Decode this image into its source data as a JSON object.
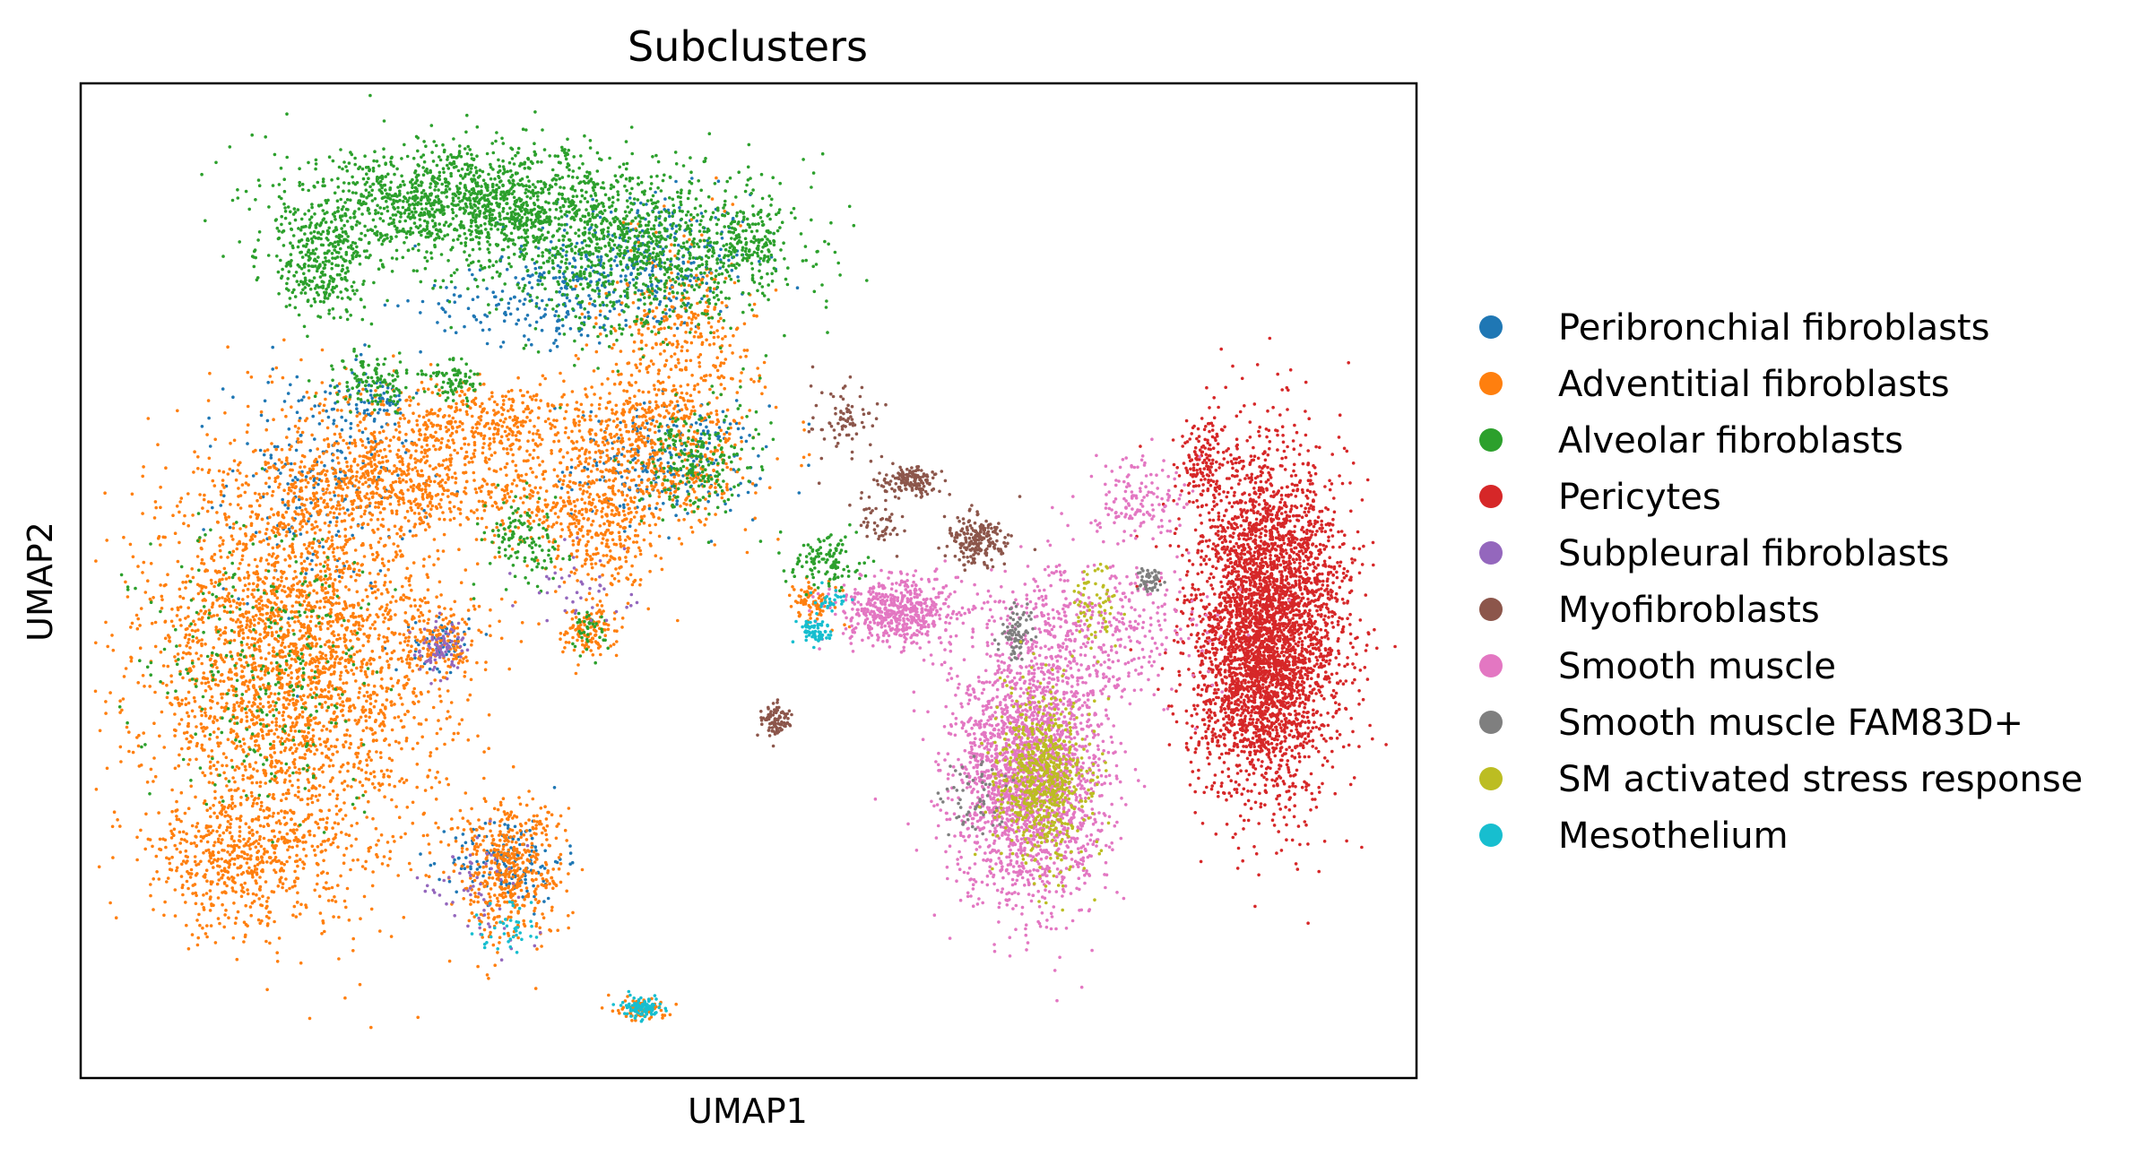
{
  "chart_data": {
    "type": "scatter",
    "title": "Subclusters",
    "xlabel": "UMAP1",
    "ylabel": "UMAP2",
    "xlim": [
      0,
      100
    ],
    "ylim": [
      0,
      100
    ],
    "grid": false,
    "ticks": false,
    "legend_position": "right",
    "series": [
      {
        "name": "Peribronchial fibroblasts",
        "color": "#1f77b4",
        "clusters": [
          [
            42,
            82,
            6,
            5,
            350
          ],
          [
            44,
            62,
            5,
            4,
            260
          ],
          [
            18,
            60,
            5,
            8,
            220
          ],
          [
            32,
            22,
            3,
            3,
            160
          ],
          [
            22,
            68,
            2,
            2,
            60
          ],
          [
            34,
            78,
            6,
            3,
            160
          ],
          [
            27,
            44,
            1.5,
            2,
            60
          ]
        ]
      },
      {
        "name": "Adventitial fibroblasts",
        "color": "#ff7f0e",
        "clusters": [
          [
            16,
            42,
            8,
            15,
            3000
          ],
          [
            23,
            60,
            6,
            4,
            600
          ],
          [
            30,
            66,
            7,
            3,
            450
          ],
          [
            32,
            21,
            3,
            5,
            500
          ],
          [
            43,
            63,
            5,
            6,
            600
          ],
          [
            39,
            54,
            3,
            4,
            250
          ],
          [
            38,
            45,
            1.5,
            2,
            120
          ],
          [
            27,
            44,
            2,
            2.5,
            130
          ],
          [
            42,
            7,
            1.3,
            1,
            70
          ],
          [
            45,
            75,
            4,
            7,
            350
          ],
          [
            55,
            48,
            1.5,
            1.5,
            80
          ],
          [
            35,
            58,
            5,
            3,
            200
          ],
          [
            12,
            22,
            5,
            5,
            500
          ]
        ]
      },
      {
        "name": "Alveolar fibroblasts",
        "color": "#2ca02c",
        "clusters": [
          [
            29,
            88,
            9,
            4,
            1400
          ],
          [
            42,
            83,
            8,
            6,
            1000
          ],
          [
            18,
            82,
            3,
            4,
            350
          ],
          [
            22,
            70,
            2,
            2,
            120
          ],
          [
            28,
            70,
            1.5,
            1.5,
            80
          ],
          [
            33,
            54,
            2,
            3,
            120
          ],
          [
            46,
            62,
            3,
            4,
            220
          ],
          [
            14,
            42,
            6,
            10,
            300
          ],
          [
            56,
            52,
            2,
            2,
            120
          ],
          [
            38,
            45,
            1,
            1.5,
            40
          ],
          [
            50,
            84,
            2,
            3,
            150
          ]
        ]
      },
      {
        "name": "Pericytes",
        "color": "#d62728",
        "clusters": [
          [
            89,
            46,
            4,
            12,
            3500
          ],
          [
            84,
            62,
            1.2,
            3,
            120
          ],
          [
            87,
            38,
            3,
            6,
            400
          ]
        ]
      },
      {
        "name": "Subpleural fibroblasts",
        "color": "#9467bd",
        "clusters": [
          [
            27,
            43,
            1.5,
            2,
            80
          ],
          [
            30,
            19,
            3,
            4,
            60
          ],
          [
            38,
            50,
            3,
            3,
            40
          ]
        ]
      },
      {
        "name": "Myofibroblasts",
        "color": "#8c564b",
        "clusters": [
          [
            62,
            60,
            1.5,
            1,
            150
          ],
          [
            67,
            54,
            1.5,
            2,
            200
          ],
          [
            52,
            36,
            0.8,
            1.2,
            90
          ],
          [
            57,
            66,
            2,
            3,
            80
          ],
          [
            60,
            56,
            1.5,
            2,
            50
          ]
        ]
      },
      {
        "name": "Smooth muscle",
        "color": "#e377c2",
        "clusters": [
          [
            61,
            47,
            3,
            2.5,
            550
          ],
          [
            71,
            30,
            4,
            9,
            2200
          ],
          [
            75,
            45,
            6,
            5,
            500
          ],
          [
            79,
            58,
            3,
            3,
            150
          ]
        ]
      },
      {
        "name": "Smooth muscle FAM83D+",
        "color": "#7f7f7f",
        "clusters": [
          [
            80,
            50,
            0.7,
            0.7,
            50
          ],
          [
            70,
            45,
            1,
            2,
            80
          ],
          [
            67,
            28,
            2,
            3,
            60
          ]
        ]
      },
      {
        "name": "SM activated stress response",
        "color": "#bcbd22",
        "clusters": [
          [
            72,
            30,
            2.5,
            6,
            700
          ],
          [
            76,
            48,
            1.2,
            3,
            70
          ]
        ]
      },
      {
        "name": "Mesothelium",
        "color": "#17becf",
        "clusters": [
          [
            55,
            45,
            0.8,
            0.8,
            70
          ],
          [
            42,
            7,
            1,
            0.8,
            90
          ],
          [
            32,
            15,
            1.5,
            2,
            40
          ],
          [
            56,
            48,
            0.8,
            0.8,
            30
          ]
        ]
      }
    ]
  }
}
